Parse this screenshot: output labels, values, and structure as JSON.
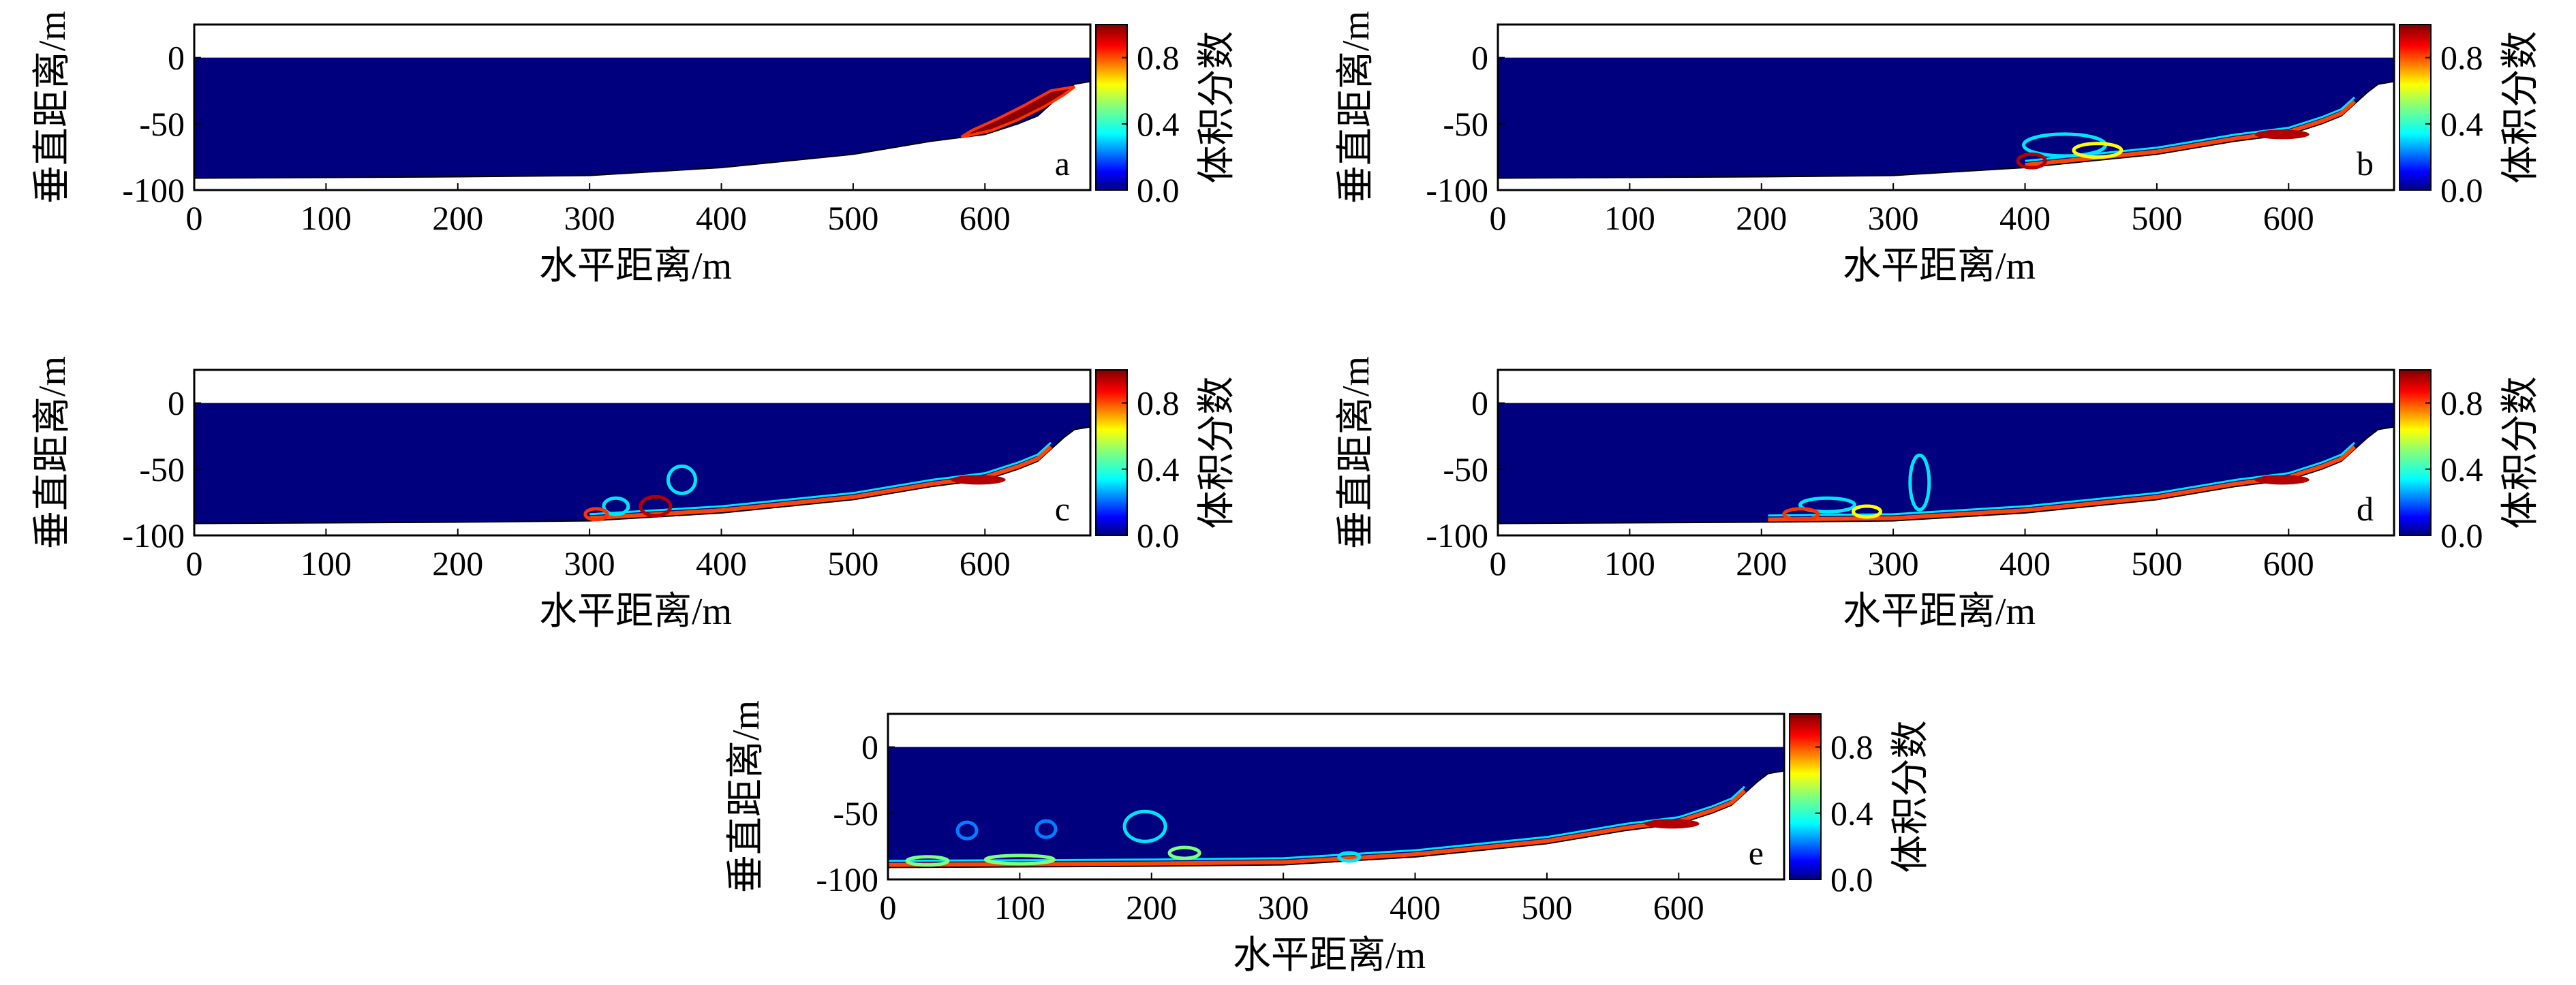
{
  "chart_data": [
    {
      "panel": "a",
      "type": "heatmap",
      "xlabel": "水平距离/m",
      "ylabel": "垂直距离/m",
      "colorbar_label": "体积分数",
      "x_ticks": [
        0,
        100,
        200,
        300,
        400,
        500,
        600
      ],
      "y_ticks": [
        0,
        -50,
        -100
      ],
      "colorbar_ticks": [
        0.0,
        0.4,
        0.8
      ],
      "xlim": [
        0,
        680
      ],
      "ylim": [
        -100,
        25
      ],
      "clim": [
        0,
        1
      ],
      "slide_region_x": [
        580,
        670
      ]
    },
    {
      "panel": "b",
      "type": "heatmap",
      "xlabel": "水平距离/m",
      "ylabel": "垂直距离/m",
      "colorbar_label": "体积分数",
      "x_ticks": [
        0,
        100,
        200,
        300,
        400,
        500,
        600
      ],
      "y_ticks": [
        0,
        -50,
        -100
      ],
      "colorbar_ticks": [
        0.0,
        0.4,
        0.8
      ],
      "xlim": [
        0,
        680
      ],
      "ylim": [
        -100,
        25
      ],
      "clim": [
        0,
        1
      ],
      "front_x": 400
    },
    {
      "panel": "c",
      "type": "heatmap",
      "xlabel": "水平距离/m",
      "ylabel": "垂直距离/m",
      "colorbar_label": "体积分数",
      "x_ticks": [
        0,
        100,
        200,
        300,
        400,
        500,
        600
      ],
      "y_ticks": [
        0,
        -50,
        -100
      ],
      "colorbar_ticks": [
        0.0,
        0.4,
        0.8
      ],
      "xlim": [
        0,
        680
      ],
      "ylim": [
        -100,
        25
      ],
      "clim": [
        0,
        1
      ],
      "front_x": 300
    },
    {
      "panel": "d",
      "type": "heatmap",
      "xlabel": "水平距离/m",
      "ylabel": "垂直距离/m",
      "colorbar_label": "体积分数",
      "x_ticks": [
        0,
        100,
        200,
        300,
        400,
        500,
        600
      ],
      "y_ticks": [
        0,
        -50,
        -100
      ],
      "colorbar_ticks": [
        0.0,
        0.4,
        0.8
      ],
      "xlim": [
        0,
        680
      ],
      "ylim": [
        -100,
        25
      ],
      "clim": [
        0,
        1
      ],
      "front_x": 205
    },
    {
      "panel": "e",
      "type": "heatmap",
      "xlabel": "水平距离/m",
      "ylabel": "垂直距离/m",
      "colorbar_label": "体积分数",
      "x_ticks": [
        0,
        100,
        200,
        300,
        400,
        500,
        600
      ],
      "y_ticks": [
        0,
        -50,
        -100
      ],
      "colorbar_ticks": [
        0.0,
        0.4,
        0.8
      ],
      "xlim": [
        0,
        680
      ],
      "ylim": [
        -100,
        25
      ],
      "clim": [
        0,
        1
      ],
      "front_x": 0
    }
  ],
  "colors": {
    "water": "#00007f",
    "background": "#ffffff",
    "colormap": [
      "#00007f",
      "#0000ff",
      "#007fff",
      "#00ffff",
      "#7fff7f",
      "#ffff00",
      "#ff7f00",
      "#ff0000",
      "#7f0000"
    ]
  }
}
